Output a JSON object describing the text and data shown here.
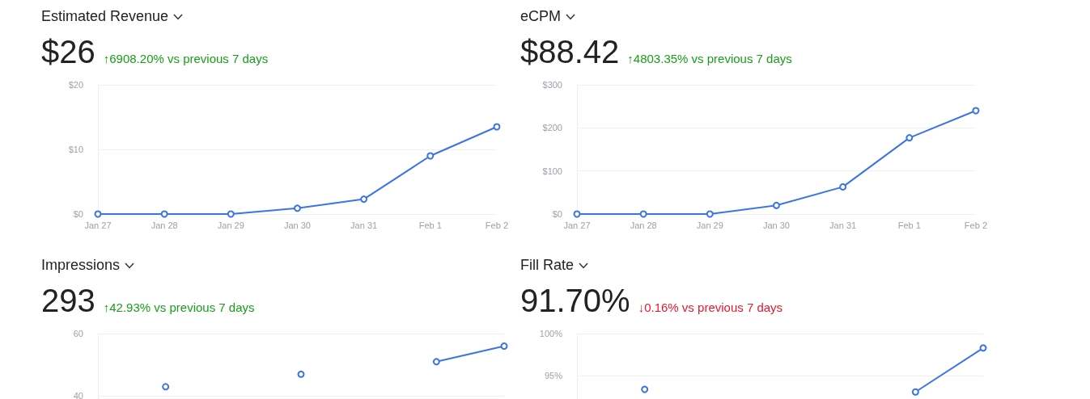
{
  "chart_data": [
    {
      "type": "line",
      "title": "Estimated Revenue",
      "subtitle": "$26",
      "annotations": [
        "↑6908.20% vs previous 7 days"
      ],
      "categories": [
        "Jan 27",
        "Jan 28",
        "Jan 29",
        "Jan 30",
        "Jan 31",
        "Feb 1",
        "Feb 2"
      ],
      "series": [
        {
          "color": "#3b73e8",
          "values": [
            0,
            0,
            0,
            0.9,
            2.3,
            9.0,
            13.5
          ]
        }
      ],
      "ylim": [
        0,
        20
      ],
      "yticks": [
        {
          "value": 0,
          "label": "$0"
        },
        {
          "value": 10,
          "label": "$10"
        },
        {
          "value": 20,
          "label": "$20"
        }
      ],
      "grid": "y",
      "marker": "circle",
      "line_style": "solid"
    },
    {
      "type": "line",
      "title": "eCPM",
      "subtitle": "$88.42",
      "annotations": [
        "↑4803.35% vs previous 7 days"
      ],
      "categories": [
        "Jan 27",
        "Jan 28",
        "Jan 29",
        "Jan 30",
        "Jan 31",
        "Feb 1",
        "Feb 2"
      ],
      "series": [
        {
          "color": "#3b73e8",
          "values": [
            0,
            0,
            0,
            20,
            63,
            177,
            240
          ]
        }
      ],
      "ylim": [
        0,
        300
      ],
      "yticks": [
        {
          "value": 0,
          "label": "$0"
        },
        {
          "value": 100,
          "label": "$100"
        },
        {
          "value": 200,
          "label": "$200"
        },
        {
          "value": 300,
          "label": "$300"
        }
      ],
      "grid": "y",
      "marker": "circle",
      "line_style": "solid"
    },
    {
      "type": "line",
      "title": "Impressions",
      "subtitle": "293",
      "annotations": [
        "↑42.93% vs previous 7 days"
      ],
      "categories": [
        null,
        null,
        null,
        null,
        null,
        null,
        null
      ],
      "series": [
        {
          "color": "#3b73e8",
          "values": [
            null,
            43,
            null,
            47,
            null,
            51,
            56
          ]
        }
      ],
      "ylim": [
        37,
        60
      ],
      "yticks": [
        40,
        60
      ],
      "grid": "y",
      "marker": "circle",
      "line_style": "solid",
      "tick_labels": "y"
    },
    {
      "type": "line",
      "title": "Fill Rate",
      "subtitle": "91.70%",
      "annotations": [
        "↓0.16% vs previous 7 days"
      ],
      "categories": [
        null,
        null,
        null,
        null,
        null,
        null,
        null
      ],
      "series": [
        {
          "color": "#3b73e8",
          "values": [
            null,
            93.4,
            null,
            null,
            null,
            93.1,
            98.3
          ]
        }
      ],
      "ylim": [
        91.5,
        100
      ],
      "yticks": [
        {
          "value": 95,
          "label": "95%"
        },
        {
          "value": 100,
          "label": "100%"
        }
      ],
      "grid": "y",
      "marker": "circle",
      "line_style": "solid",
      "tick_labels": "y"
    }
  ]
}
